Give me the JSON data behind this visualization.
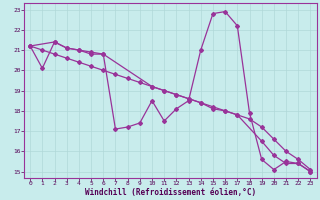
{
  "xlabel": "Windchill (Refroidissement éolien,°C)",
  "background_color": "#c8ecec",
  "grid_color": "#b0d8d8",
  "line_color": "#993399",
  "xlim": [
    -0.5,
    23.5
  ],
  "ylim": [
    14.7,
    23.3
  ],
  "yticks": [
    15,
    16,
    17,
    18,
    19,
    20,
    21,
    22,
    23
  ],
  "xticks": [
    0,
    1,
    2,
    3,
    4,
    5,
    6,
    7,
    8,
    9,
    10,
    11,
    12,
    13,
    14,
    15,
    16,
    17,
    18,
    19,
    20,
    21,
    22,
    23
  ],
  "series1_x": [
    0,
    1,
    2,
    3,
    4,
    5,
    6,
    7,
    8,
    9,
    10,
    11,
    12,
    13,
    14,
    15,
    16,
    17,
    18,
    19,
    20,
    21,
    22,
    23
  ],
  "series1_y": [
    21.2,
    20.1,
    21.4,
    21.1,
    21.0,
    20.8,
    20.8,
    17.1,
    17.2,
    17.4,
    18.5,
    17.5,
    18.1,
    18.5,
    21.0,
    22.8,
    22.9,
    22.2,
    17.9,
    15.6,
    15.1,
    15.5,
    15.4,
    15.0
  ],
  "series2_x": [
    0,
    2,
    3,
    4,
    5,
    6,
    10,
    11,
    12,
    13,
    14,
    15,
    16,
    17,
    19,
    20,
    21,
    22,
    23
  ],
  "series2_y": [
    21.2,
    21.4,
    21.1,
    21.0,
    20.9,
    20.8,
    19.2,
    19.0,
    18.8,
    18.6,
    18.4,
    18.1,
    18.0,
    17.8,
    16.5,
    15.8,
    15.4,
    15.4,
    15.0
  ],
  "series3_x": [
    0,
    1,
    2,
    3,
    4,
    5,
    6,
    7,
    8,
    9,
    10,
    11,
    12,
    13,
    14,
    15,
    16,
    17,
    18,
    19,
    20,
    21,
    22,
    23
  ],
  "series3_y": [
    21.2,
    21.0,
    20.8,
    20.6,
    20.4,
    20.2,
    20.0,
    19.8,
    19.6,
    19.4,
    19.2,
    19.0,
    18.8,
    18.6,
    18.4,
    18.2,
    18.0,
    17.8,
    17.6,
    17.2,
    16.6,
    16.0,
    15.6,
    15.1
  ]
}
